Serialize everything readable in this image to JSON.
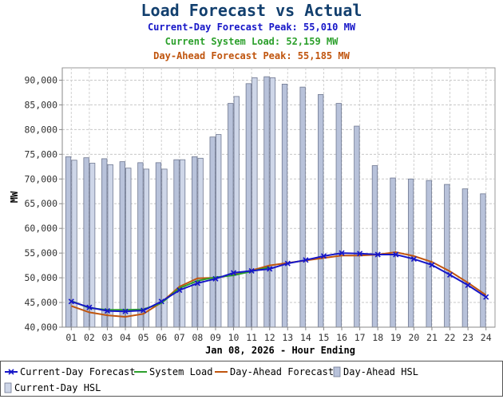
{
  "chart_data": {
    "type": "bar+line",
    "title": "Load Forecast vs Actual",
    "subtitles": [
      {
        "label": "Current-Day Forecast Peak:",
        "value": "55,010 MW",
        "color": "#1616c8"
      },
      {
        "label": "Current System Load:",
        "value": "52,159 MW",
        "color": "#2ca02c"
      },
      {
        "label": "Day-Ahead Forecast Peak:",
        "value": "55,185 MW",
        "color": "#c0550e"
      }
    ],
    "xlabel": "Jan 08, 2026 - Hour Ending",
    "ylabel": "MW",
    "ylim": [
      40000,
      92500
    ],
    "yticks": [
      40000,
      45000,
      50000,
      55000,
      60000,
      65000,
      70000,
      75000,
      80000,
      85000,
      90000
    ],
    "ytick_labels": [
      "40,000",
      "45,000",
      "50,000",
      "55,000",
      "60,000",
      "65,000",
      "70,000",
      "75,000",
      "80,000",
      "85,000",
      "90,000"
    ],
    "categories": [
      "01",
      "02",
      "03",
      "04",
      "05",
      "06",
      "07",
      "08",
      "09",
      "10",
      "11",
      "12",
      "13",
      "14",
      "15",
      "16",
      "17",
      "18",
      "19",
      "20",
      "21",
      "22",
      "23",
      "24"
    ],
    "grid": true,
    "legend_position": "bottom",
    "bar_series": [
      {
        "name": "Day-Ahead HSL",
        "color": "#b8c2da",
        "values": [
          74500,
          74300,
          74100,
          73500,
          73300,
          73300,
          73900,
          74500,
          78500,
          85300,
          89300,
          90700,
          89200,
          88600,
          87100,
          85300,
          80700,
          72700,
          70200,
          70000,
          69700,
          68900,
          68000,
          67000
        ]
      },
      {
        "name": "Current-Day HSL",
        "color": "#ced6e8",
        "values": [
          73800,
          73200,
          72900,
          72200,
          72000,
          72000,
          73900,
          74200,
          79000,
          86700,
          90500,
          90500,
          null,
          null,
          null,
          null,
          null,
          null,
          null,
          null,
          null,
          null,
          null,
          null
        ]
      }
    ],
    "line_series": [
      {
        "name": "Current-Day Forecast",
        "color": "#1616c8",
        "marker": "x",
        "values": [
          45200,
          44000,
          43300,
          43200,
          43400,
          45200,
          47500,
          48900,
          49800,
          51000,
          51400,
          51800,
          52900,
          53600,
          54400,
          55010,
          54900,
          54700,
          54700,
          53800,
          52600,
          50600,
          48500,
          46100
        ]
      },
      {
        "name": "System Load",
        "color": "#2ca02c",
        "values": [
          45300,
          43900,
          43500,
          43500,
          43600,
          44900,
          47900,
          49400,
          50100,
          50500,
          51300,
          52159,
          null,
          null,
          null,
          null,
          null,
          null,
          null,
          null,
          null,
          null,
          null,
          null
        ]
      },
      {
        "name": "Day-Ahead Forecast",
        "color": "#c0550e",
        "values": [
          44300,
          43000,
          42400,
          42100,
          42700,
          45000,
          48200,
          49900,
          50000,
          50600,
          51500,
          52500,
          53000,
          53500,
          54000,
          54500,
          54500,
          54700,
          55185,
          54400,
          53200,
          51300,
          49000,
          46500
        ]
      }
    ]
  }
}
